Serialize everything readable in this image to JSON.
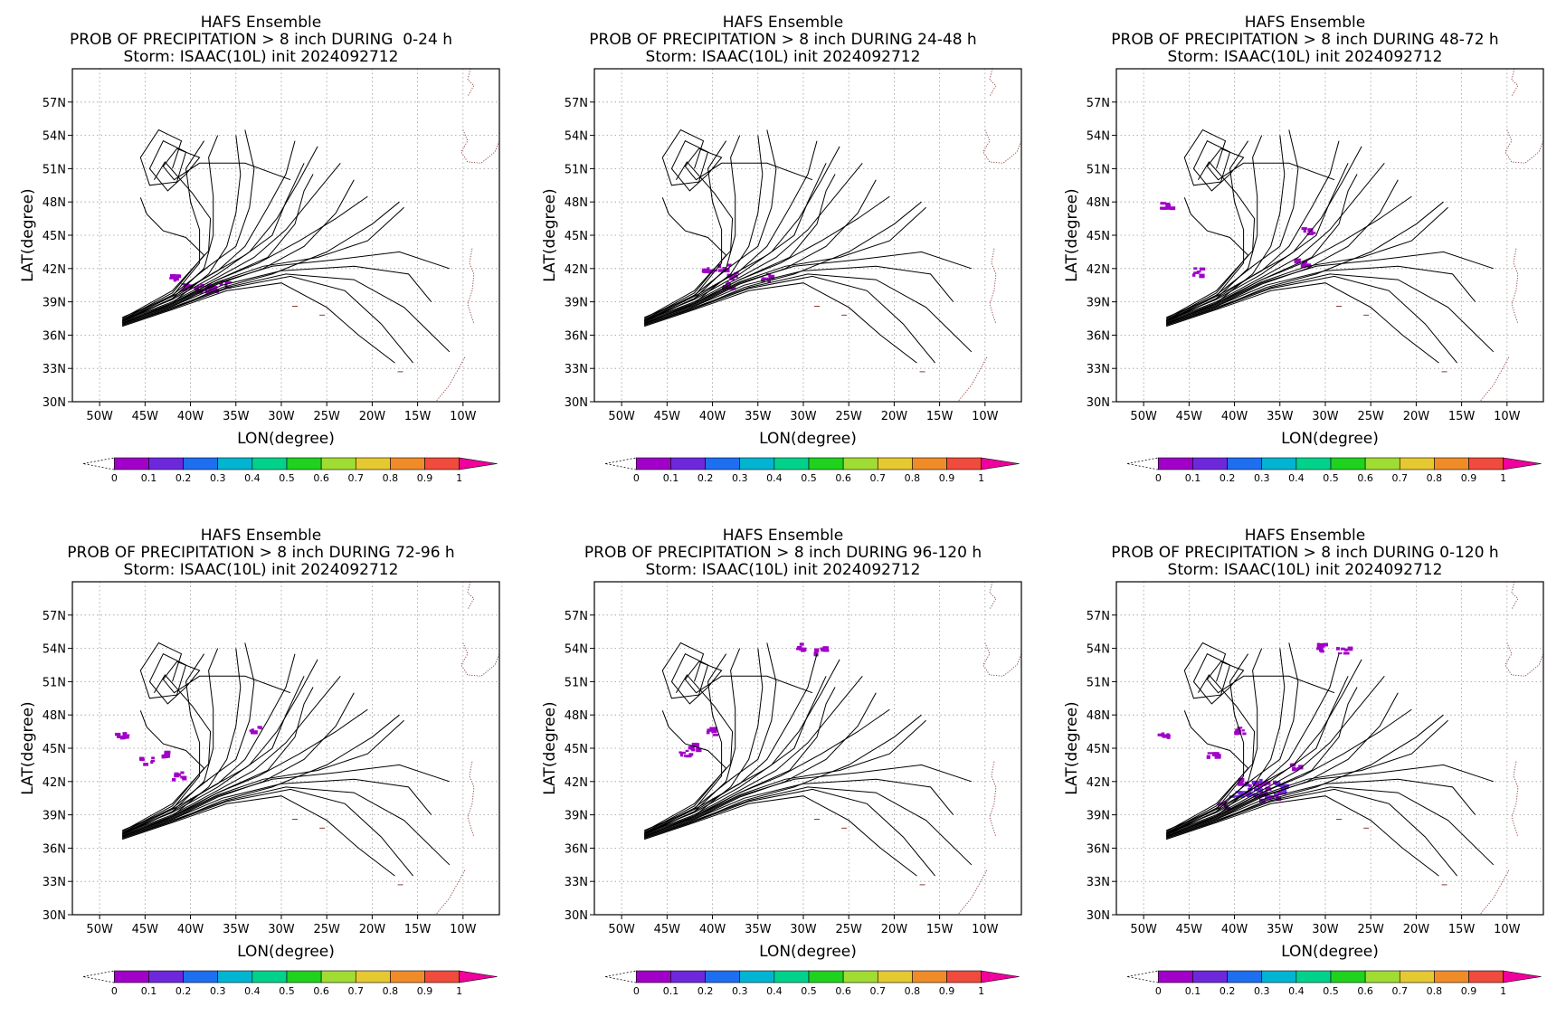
{
  "chart_data": [
    {
      "type": "line",
      "title": "HAFS Ensemble",
      "subtitle": "PROB OF PRECIPITATION > 8 inch DURING  0-24 h",
      "storm_line": "Storm: ISAAC(10L) init 2024092712",
      "period": "0-24 h",
      "precip_areas": [
        {
          "lon": -41.8,
          "lat": 41.2,
          "prob": 0.05
        },
        {
          "lon": -40.5,
          "lat": 40.5,
          "prob": 0.05
        },
        {
          "lon": -39.0,
          "lat": 40.3,
          "prob": 0.05
        },
        {
          "lon": -37.5,
          "lat": 40.4,
          "prob": 0.05
        },
        {
          "lon": -36.2,
          "lat": 40.6,
          "prob": 0.05
        }
      ]
    },
    {
      "type": "line",
      "title": "HAFS Ensemble",
      "subtitle": "PROB OF PRECIPITATION > 8 inch DURING 24-48 h",
      "storm_line": "Storm: ISAAC(10L) init 2024092712",
      "period": "24-48 h",
      "precip_areas": [
        {
          "lon": -40.5,
          "lat": 41.8,
          "prob": 0.05
        },
        {
          "lon": -39.0,
          "lat": 42.2,
          "prob": 0.05
        },
        {
          "lon": -37.8,
          "lat": 41.6,
          "prob": 0.05
        },
        {
          "lon": -38.8,
          "lat": 40.6,
          "prob": 0.05
        },
        {
          "lon": -34.5,
          "lat": 41.3,
          "prob": 0.05
        }
      ]
    },
    {
      "type": "line",
      "title": "HAFS Ensemble",
      "subtitle": "PROB OF PRECIPITATION > 8 inch DURING 48-72 h",
      "storm_line": "Storm: ISAAC(10L) init 2024092712",
      "period": "48-72 h",
      "precip_areas": [
        {
          "lon": -32.0,
          "lat": 45.5,
          "prob": 0.05
        },
        {
          "lon": -32.8,
          "lat": 42.6,
          "prob": 0.05
        },
        {
          "lon": -44.2,
          "lat": 41.8,
          "prob": 0.05
        },
        {
          "lon": -47.8,
          "lat": 47.8,
          "prob": 0.05
        }
      ]
    },
    {
      "type": "line",
      "title": "HAFS Ensemble",
      "subtitle": "PROB OF PRECIPITATION > 8 inch DURING 72-96 h",
      "storm_line": "Storm: ISAAC(10L) init 2024092712",
      "period": "72-96 h",
      "precip_areas": [
        {
          "lon": -45.0,
          "lat": 44.0,
          "prob": 0.05
        },
        {
          "lon": -43.0,
          "lat": 44.5,
          "prob": 0.05
        },
        {
          "lon": -41.5,
          "lat": 42.6,
          "prob": 0.05
        },
        {
          "lon": -47.8,
          "lat": 46.4,
          "prob": 0.05
        },
        {
          "lon": -33.0,
          "lat": 46.8,
          "prob": 0.05
        }
      ]
    },
    {
      "type": "line",
      "title": "HAFS Ensemble",
      "subtitle": "PROB OF PRECIPITATION > 8 inch DURING 96-120 h",
      "storm_line": "Storm: ISAAC(10L) init 2024092712",
      "period": "96-120 h",
      "precip_areas": [
        {
          "lon": -30.5,
          "lat": 54.2,
          "prob": 0.05
        },
        {
          "lon": -28.2,
          "lat": 53.9,
          "prob": 0.05
        },
        {
          "lon": -40.0,
          "lat": 46.6,
          "prob": 0.05
        },
        {
          "lon": -42.0,
          "lat": 45.3,
          "prob": 0.05
        },
        {
          "lon": -43.2,
          "lat": 44.6,
          "prob": 0.05
        }
      ]
    },
    {
      "type": "line",
      "title": "HAFS Ensemble",
      "subtitle": "PROB OF PRECIPITATION > 8 inch DURING 0-120 h",
      "storm_line": "Storm: ISAAC(10L) init 2024092712",
      "period": "0-120 h",
      "precip_areas": [
        {
          "lon": -40.0,
          "lat": 41.0,
          "prob": 0.1
        },
        {
          "lon": -38.0,
          "lat": 41.5,
          "prob": 0.2
        },
        {
          "lon": -36.5,
          "lat": 41.2,
          "prob": 0.15
        },
        {
          "lon": -35.0,
          "lat": 41.8,
          "prob": 0.1
        },
        {
          "lon": -41.5,
          "lat": 40.0,
          "prob": 0.05
        },
        {
          "lon": -33.5,
          "lat": 43.5,
          "prob": 0.05
        },
        {
          "lon": -42.5,
          "lat": 44.5,
          "prob": 0.05
        },
        {
          "lon": -39.5,
          "lat": 46.7,
          "prob": 0.05
        },
        {
          "lon": -30.5,
          "lat": 54.2,
          "prob": 0.05
        },
        {
          "lon": -28.2,
          "lat": 53.9,
          "prob": 0.05
        },
        {
          "lon": -47.8,
          "lat": 46.4,
          "prob": 0.05
        }
      ]
    }
  ],
  "axes": {
    "xlabel": "LON(degree)",
    "ylabel": "LAT(degree)",
    "xlim": [
      -53,
      -6
    ],
    "ylim": [
      30,
      60
    ],
    "xticks": [
      -50,
      -45,
      -40,
      -35,
      -30,
      -25,
      -20,
      -15,
      -10
    ],
    "xtick_labels": [
      "50W",
      "45W",
      "40W",
      "35W",
      "30W",
      "25W",
      "20W",
      "15W",
      "10W"
    ],
    "yticks": [
      30,
      33,
      36,
      39,
      42,
      45,
      48,
      51,
      54,
      57
    ],
    "ytick_labels": [
      "30N",
      "33N",
      "36N",
      "39N",
      "42N",
      "45N",
      "48N",
      "51N",
      "54N",
      "57N"
    ],
    "grid": true
  },
  "colorbar": {
    "labels": [
      "0",
      "0.1",
      "0.2",
      "0.3",
      "0.4",
      "0.5",
      "0.6",
      "0.7",
      "0.8",
      "0.9",
      "1"
    ],
    "colors": [
      "#a000c8",
      "#6e28dc",
      "#1e6ef0",
      "#00b4d2",
      "#00d28c",
      "#1ed21e",
      "#a0dc32",
      "#e6c832",
      "#f08c28",
      "#f04b3c",
      "#f0009c"
    ]
  },
  "tracks": [
    [
      [
        -47.5,
        37.6
      ],
      [
        -42,
        39.5
      ],
      [
        -37,
        41.8
      ],
      [
        -34,
        44
      ],
      [
        -31.5,
        47.5
      ],
      [
        -29.5,
        50.5
      ],
      [
        -28.5,
        53.5
      ]
    ],
    [
      [
        -47.5,
        37.4
      ],
      [
        -42,
        39.2
      ],
      [
        -37,
        41.5
      ],
      [
        -33.5,
        43.5
      ],
      [
        -30.5,
        46.5
      ],
      [
        -28,
        50
      ],
      [
        -26,
        53
      ]
    ],
    [
      [
        -47.5,
        37.3
      ],
      [
        -42,
        39.0
      ],
      [
        -37,
        41.2
      ],
      [
        -33,
        43
      ],
      [
        -29.5,
        45.5
      ],
      [
        -26.5,
        48.5
      ],
      [
        -23.5,
        51.5
      ]
    ],
    [
      [
        -47.5,
        37.2
      ],
      [
        -42,
        38.9
      ],
      [
        -37,
        41.0
      ],
      [
        -32.5,
        42.5
      ],
      [
        -28,
        44.5
      ],
      [
        -24,
        46.5
      ],
      [
        -20.5,
        48.5
      ]
    ],
    [
      [
        -47.5,
        37.1
      ],
      [
        -42,
        38.8
      ],
      [
        -37,
        40.8
      ],
      [
        -32,
        42.2
      ],
      [
        -26,
        43
      ],
      [
        -20.5,
        44.5
      ],
      [
        -16.5,
        47.5
      ]
    ],
    [
      [
        -47.5,
        37.1
      ],
      [
        -42,
        38.7
      ],
      [
        -37,
        40.7
      ],
      [
        -31,
        42.2
      ],
      [
        -24,
        42.8
      ],
      [
        -17,
        43.5
      ],
      [
        -11.5,
        42
      ]
    ],
    [
      [
        -47.5,
        37.0
      ],
      [
        -42,
        38.6
      ],
      [
        -36.5,
        40.5
      ],
      [
        -30,
        41.8
      ],
      [
        -22,
        42.2
      ],
      [
        -16,
        41.5
      ],
      [
        -13.5,
        39
      ]
    ],
    [
      [
        -47.5,
        36.9
      ],
      [
        -42,
        38.5
      ],
      [
        -36,
        40.3
      ],
      [
        -29.5,
        41.5
      ],
      [
        -22,
        41.0
      ],
      [
        -16.5,
        38.5
      ],
      [
        -11.5,
        34.5
      ]
    ],
    [
      [
        -47.5,
        36.9
      ],
      [
        -42,
        38.4
      ],
      [
        -36,
        40.2
      ],
      [
        -29,
        41.3
      ],
      [
        -23,
        40.0
      ],
      [
        -19,
        37
      ],
      [
        -15.5,
        33.5
      ]
    ],
    [
      [
        -47.5,
        36.8
      ],
      [
        -42,
        38.3
      ],
      [
        -36,
        40.0
      ],
      [
        -30,
        40.7
      ],
      [
        -25,
        38.5
      ],
      [
        -21.5,
        36
      ],
      [
        -17.5,
        33.5
      ]
    ],
    [
      [
        -47.5,
        37.0
      ],
      [
        -42,
        38.9
      ],
      [
        -38,
        41.5
      ],
      [
        -36,
        44
      ],
      [
        -35,
        47
      ],
      [
        -34.5,
        50.5
      ],
      [
        -35,
        54
      ]
    ],
    [
      [
        -47.5,
        37.2
      ],
      [
        -42,
        39.3
      ],
      [
        -38.5,
        42
      ],
      [
        -37.5,
        45
      ],
      [
        -37.5,
        48.5
      ],
      [
        -38,
        52
      ],
      [
        -37,
        54
      ]
    ],
    [
      [
        -47.5,
        37.3
      ],
      [
        -42,
        39.5
      ],
      [
        -39,
        42.5
      ],
      [
        -39,
        45.5
      ],
      [
        -40,
        48
      ],
      [
        -40.5,
        51
      ],
      [
        -38.5,
        53.5
      ]
    ],
    [
      [
        -47.5,
        37.4
      ],
      [
        -42,
        39.8
      ],
      [
        -38.5,
        43.2
      ],
      [
        -40.5,
        44.8
      ],
      [
        -43,
        45.4
      ],
      [
        -44.8,
        46.9
      ],
      [
        -45.5,
        48.4
      ]
    ],
    [
      [
        -47.5,
        37.5
      ],
      [
        -42,
        40.0
      ],
      [
        -38,
        43.6
      ],
      [
        -37.8,
        46.5
      ],
      [
        -39.8,
        48.8
      ],
      [
        -42.8,
        51.6
      ],
      [
        -44.0,
        50.0
      ]
    ],
    [
      [
        -47.5,
        37.4
      ],
      [
        -42,
        39.6
      ],
      [
        -38,
        42.2
      ],
      [
        -35,
        44
      ],
      [
        -33.5,
        47.5
      ],
      [
        -33,
        51
      ],
      [
        -34,
        54.5
      ]
    ],
    [
      [
        -47.5,
        37.3
      ],
      [
        -42,
        39.3
      ],
      [
        -37.5,
        41.6
      ],
      [
        -34,
        43.2
      ],
      [
        -31,
        45
      ],
      [
        -29.5,
        48
      ],
      [
        -27.5,
        51.5
      ]
    ],
    [
      [
        -47.5,
        37.0
      ],
      [
        -42,
        38.6
      ],
      [
        -37,
        40.6
      ],
      [
        -32,
        42
      ],
      [
        -27.5,
        44
      ],
      [
        -24,
        47
      ],
      [
        -22,
        50
      ]
    ],
    [
      [
        -47.5,
        36.9
      ],
      [
        -42,
        38.4
      ],
      [
        -36.5,
        40.3
      ],
      [
        -31,
        41.5
      ],
      [
        -25,
        43.5
      ],
      [
        -20,
        46
      ],
      [
        -17,
        48
      ]
    ],
    [
      [
        -47.5,
        37.1
      ],
      [
        -42,
        38.8
      ],
      [
        -37,
        41
      ],
      [
        -31.5,
        43
      ],
      [
        -28.5,
        46
      ],
      [
        -27.5,
        49
      ],
      [
        -26.5,
        50.5
      ]
    ]
  ],
  "loop_tracks": [
    [
      [
        -42,
        51
      ],
      [
        -41,
        53.5
      ],
      [
        -43.5,
        54.5
      ],
      [
        -45.5,
        52
      ],
      [
        -44.5,
        49.5
      ],
      [
        -41.5,
        49.8
      ],
      [
        -40.5,
        52.5
      ],
      [
        -43,
        53.5
      ],
      [
        -44.5,
        51
      ],
      [
        -42.5,
        49
      ],
      [
        -40.5,
        50.5
      ]
    ],
    [
      [
        -40.5,
        50.5
      ],
      [
        -39,
        52
      ],
      [
        -41.5,
        52.8
      ],
      [
        -43,
        51.2
      ],
      [
        -41.8,
        50
      ],
      [
        -39,
        51.5
      ],
      [
        -34,
        51.5
      ],
      [
        -29,
        50
      ]
    ]
  ],
  "coast_segments": [
    [
      [
        -9.2,
        60
      ],
      [
        -9.5,
        59
      ],
      [
        -8.8,
        58.5
      ],
      [
        -9.5,
        57.5
      ]
    ],
    [
      [
        -10,
        54.5
      ],
      [
        -9.5,
        53.5
      ],
      [
        -10.2,
        52.5
      ],
      [
        -9.5,
        51.6
      ],
      [
        -8,
        51.5
      ],
      [
        -6.5,
        52.5
      ],
      [
        -6,
        53.5
      ]
    ],
    [
      [
        -9,
        43.8
      ],
      [
        -9.3,
        42.5
      ],
      [
        -8.8,
        41.5
      ],
      [
        -9,
        40
      ],
      [
        -9.5,
        38.8
      ],
      [
        -8.8,
        37
      ]
    ],
    [
      [
        -9.8,
        34
      ],
      [
        -11.5,
        31.5
      ],
      [
        -13,
        30
      ]
    ]
  ],
  "island_points": [
    [
      -28.5,
      38.6
    ],
    [
      -25.5,
      37.8
    ],
    [
      -16.9,
      32.7
    ]
  ]
}
